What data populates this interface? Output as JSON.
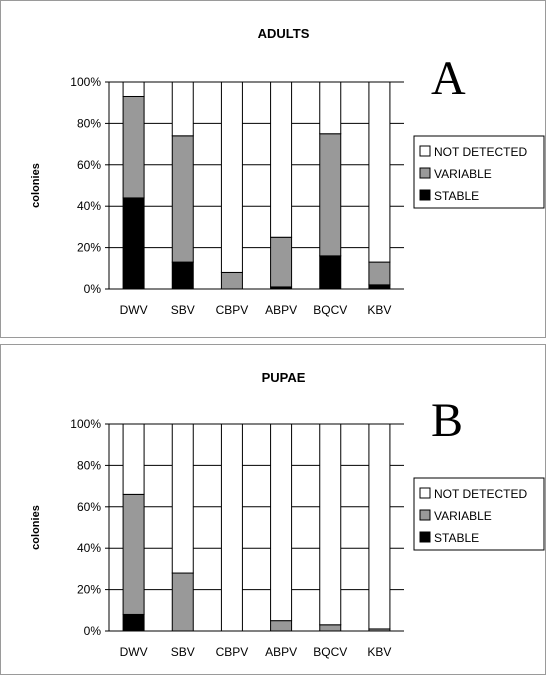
{
  "chart_data": [
    {
      "type": "bar",
      "stacked": true,
      "title": "ADULTS",
      "panel_letter": "A",
      "ylabel": "colonies",
      "xlabel": "",
      "ylim": [
        0,
        100
      ],
      "yticks": [
        "0%",
        "20%",
        "40%",
        "60%",
        "80%",
        "100%"
      ],
      "categories": [
        "DWV",
        "SBV",
        "CBPV",
        "ABPV",
        "BQCV",
        "KBV"
      ],
      "legend": {
        "position": "right",
        "entries": [
          "NOT DETECTED",
          "VARIABLE",
          "STABLE"
        ]
      },
      "series": [
        {
          "name": "STABLE",
          "color": "#000000",
          "values": [
            44,
            13,
            0,
            1,
            16,
            2
          ]
        },
        {
          "name": "VARIABLE",
          "color": "#999999",
          "values": [
            49,
            61,
            8,
            24,
            59,
            11
          ]
        },
        {
          "name": "NOT DETECTED",
          "color": "#ffffff",
          "values": [
            7,
            26,
            92,
            75,
            25,
            87
          ]
        }
      ]
    },
    {
      "type": "bar",
      "stacked": true,
      "title": "PUPAE",
      "panel_letter": "B",
      "ylabel": "colonies",
      "xlabel": "",
      "ylim": [
        0,
        100
      ],
      "yticks": [
        "0%",
        "20%",
        "40%",
        "60%",
        "80%",
        "100%"
      ],
      "categories": [
        "DWV",
        "SBV",
        "CBPV",
        "ABPV",
        "BQCV",
        "KBV"
      ],
      "legend": {
        "position": "right",
        "entries": [
          "NOT DETECTED",
          "VARIABLE",
          "STABLE"
        ]
      },
      "series": [
        {
          "name": "STABLE",
          "color": "#000000",
          "values": [
            8,
            0,
            0,
            0,
            0,
            0
          ]
        },
        {
          "name": "VARIABLE",
          "color": "#999999",
          "values": [
            58,
            28,
            0,
            5,
            3,
            1
          ]
        },
        {
          "name": "NOT DETECTED",
          "color": "#ffffff",
          "values": [
            34,
            72,
            100,
            95,
            97,
            99
          ]
        }
      ]
    }
  ]
}
